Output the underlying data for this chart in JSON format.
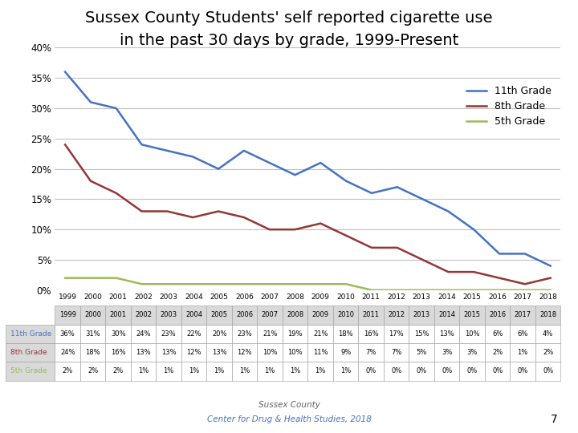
{
  "title_line1": "Sussex County Students' self reported cigarette use",
  "title_line2": "in the past 30 days by grade, 1999-Present",
  "years": [
    1999,
    2000,
    2001,
    2002,
    2003,
    2004,
    2005,
    2006,
    2007,
    2008,
    2009,
    2010,
    2011,
    2012,
    2013,
    2014,
    2015,
    2016,
    2017,
    2018
  ],
  "grade11": [
    36,
    31,
    30,
    24,
    23,
    22,
    20,
    23,
    21,
    19,
    21,
    18,
    16,
    17,
    15,
    13,
    10,
    6,
    6,
    4
  ],
  "grade8": [
    24,
    18,
    16,
    13,
    13,
    12,
    13,
    12,
    10,
    10,
    11,
    9,
    7,
    7,
    5,
    3,
    3,
    2,
    1,
    2
  ],
  "grade5": [
    2,
    2,
    2,
    1,
    1,
    1,
    1,
    1,
    1,
    1,
    1,
    1,
    0,
    0,
    0,
    0,
    0,
    0,
    0,
    0
  ],
  "color11": "#4472C4",
  "color8": "#943634",
  "color5": "#9BBB59",
  "footer1": "Sussex County",
  "footer2": "Center for Drug & Health Studies, 2018",
  "page_num": "7",
  "ylim": [
    0,
    40
  ],
  "yticks": [
    0,
    5,
    10,
    15,
    20,
    25,
    30,
    35,
    40
  ],
  "ytick_labels": [
    "0%",
    "5%",
    "10%",
    "15%",
    "20%",
    "25%",
    "30%",
    "35%",
    "40%"
  ],
  "bg_color": "#FFFFFF",
  "grid_color": "#C0C0C0",
  "table_header_bg": "#D9D9D9",
  "table_row11_color": "#4472C4",
  "table_row8_color": "#943634",
  "table_row5_color": "#9BBB59"
}
